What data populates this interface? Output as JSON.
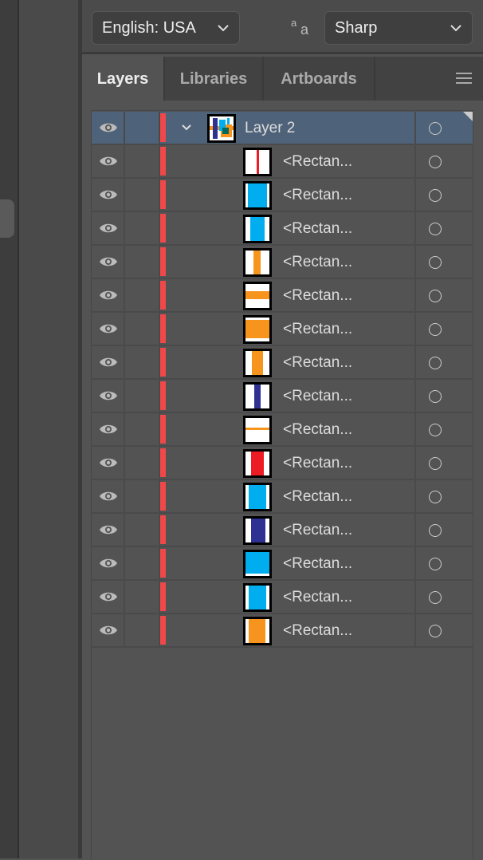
{
  "toolbar": {
    "language": "English: USA",
    "antialias": "Sharp",
    "antialias_icon": "aa-icon"
  },
  "tabs": [
    {
      "label": "Layers",
      "active": true
    },
    {
      "label": "Libraries"
    },
    {
      "label": "Artboards"
    }
  ],
  "layers": {
    "parent": {
      "name": "Layer 2",
      "color": "#f0484a",
      "expanded": true
    },
    "children": [
      {
        "name": "<Rectan...",
        "fill": "#ed1c24"
      },
      {
        "name": "<Rectan...",
        "fill": "#00aeef"
      },
      {
        "name": "<Rectan...",
        "fill": "#00aeef"
      },
      {
        "name": "<Rectan...",
        "fill": "#f7941d"
      },
      {
        "name": "<Rectan...",
        "fill": "#f7941d"
      },
      {
        "name": "<Rectan...",
        "fill": "#f7941d"
      },
      {
        "name": "<Rectan...",
        "fill": "#f7941d"
      },
      {
        "name": "<Rectan...",
        "fill": "#2e3192"
      },
      {
        "name": "<Rectan...",
        "fill": "#f7941d"
      },
      {
        "name": "<Rectan...",
        "fill": "#ed1c24"
      },
      {
        "name": "<Rectan...",
        "fill": "#00aeef"
      },
      {
        "name": "<Rectan...",
        "fill": "#2e3192"
      },
      {
        "name": "<Rectan...",
        "fill": "#00aeef"
      },
      {
        "name": "<Rectan...",
        "fill": "#00aeef"
      },
      {
        "name": "<Rectan...",
        "fill": "#f7941d"
      }
    ]
  }
}
